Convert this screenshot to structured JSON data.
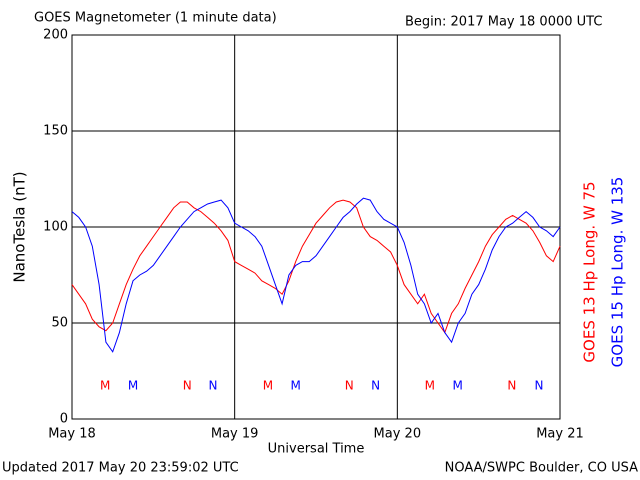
{
  "chart_data": {
    "type": "line",
    "title": "GOES Magnetometer (1 minute data)",
    "subtitle": "Begin:  2017 May 18 0000 UTC",
    "xlabel": "Universal Time",
    "ylabel": "NanoTesla (nT)",
    "footer_left": "Updated 2017 May 20 23:59:02 UTC",
    "footer_right": "NOAA/SWPC Boulder, CO USA",
    "xlim": [
      0,
      72
    ],
    "xticks": [
      {
        "value": 0,
        "label": "May 18"
      },
      {
        "value": 24,
        "label": "May 19"
      },
      {
        "value": 48,
        "label": "May 20"
      },
      {
        "value": 72,
        "label": "May 21"
      }
    ],
    "ylim": [
      0,
      200
    ],
    "yticks": [
      0,
      50,
      100,
      150,
      200
    ],
    "grid": true,
    "x": [
      0,
      1,
      2,
      3,
      4,
      5,
      6,
      7,
      8,
      9,
      10,
      11,
      12,
      13,
      14,
      15,
      16,
      17,
      18,
      19,
      20,
      21,
      22,
      23,
      24,
      25,
      26,
      27,
      28,
      29,
      30,
      31,
      32,
      33,
      34,
      35,
      36,
      37,
      38,
      39,
      40,
      41,
      42,
      43,
      44,
      45,
      46,
      47,
      48,
      49,
      50,
      51,
      52,
      53,
      54,
      55,
      56,
      57,
      58,
      59,
      60,
      61,
      62,
      63,
      64,
      65,
      66,
      67,
      68,
      69,
      70,
      71,
      72
    ],
    "series": [
      {
        "name": "GOES 13 Hp  Long. W 75",
        "color": "#ff0000",
        "values": [
          70,
          65,
          60,
          52,
          48,
          46,
          50,
          60,
          70,
          78,
          85,
          90,
          95,
          100,
          105,
          110,
          113,
          113,
          110,
          108,
          105,
          102,
          98,
          93,
          82,
          80,
          78,
          76,
          72,
          70,
          68,
          65,
          72,
          82,
          90,
          96,
          102,
          106,
          110,
          113,
          114,
          113,
          110,
          100,
          95,
          93,
          90,
          87,
          80,
          70,
          65,
          60,
          65,
          55,
          50,
          45,
          55,
          60,
          68,
          75,
          82,
          90,
          96,
          100,
          104,
          106,
          104,
          102,
          98,
          92,
          85,
          82,
          90
        ]
      },
      {
        "name": "GOES 15 Hp  Long. W 135",
        "color": "#0000ff",
        "values": [
          108,
          105,
          100,
          90,
          70,
          40,
          35,
          45,
          60,
          72,
          75,
          77,
          80,
          85,
          90,
          95,
          100,
          104,
          108,
          110,
          112,
          113,
          114,
          110,
          102,
          100,
          98,
          95,
          90,
          80,
          70,
          60,
          75,
          80,
          82,
          82,
          85,
          90,
          95,
          100,
          105,
          108,
          112,
          115,
          114,
          108,
          104,
          102,
          100,
          92,
          80,
          65,
          60,
          50,
          55,
          45,
          40,
          50,
          55,
          65,
          70,
          78,
          88,
          95,
          100,
          102,
          105,
          108,
          105,
          100,
          98,
          95,
          100
        ]
      }
    ],
    "annotations": [
      {
        "text": "M",
        "x": 4.9,
        "series": 0
      },
      {
        "text": "M",
        "x": 9,
        "series": 1
      },
      {
        "text": "N",
        "x": 17,
        "series": 0
      },
      {
        "text": "N",
        "x": 20.8,
        "series": 1
      },
      {
        "text": "M",
        "x": 28.9,
        "series": 0
      },
      {
        "text": "M",
        "x": 33,
        "series": 1
      },
      {
        "text": "N",
        "x": 40.9,
        "series": 0
      },
      {
        "text": "N",
        "x": 44.8,
        "series": 1
      },
      {
        "text": "M",
        "x": 52.8,
        "series": 0
      },
      {
        "text": "M",
        "x": 56.9,
        "series": 1
      },
      {
        "text": "N",
        "x": 64.9,
        "series": 0
      },
      {
        "text": "N",
        "x": 68.9,
        "series": 1
      }
    ]
  }
}
